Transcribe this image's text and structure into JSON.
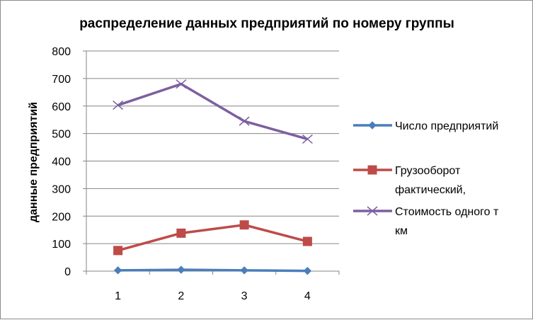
{
  "chart_data": {
    "type": "line",
    "title": "распределение данных предприятий по номеру группы",
    "xlabel": "",
    "ylabel": "данные предприятий",
    "categories": [
      "1",
      "2",
      "3",
      "4"
    ],
    "ylim": [
      0,
      800
    ],
    "yticks": [
      "0",
      "100",
      "200",
      "300",
      "400",
      "500",
      "600",
      "700",
      "800"
    ],
    "grid": true,
    "legend_position": "right",
    "series": [
      {
        "name": "Число предприятий",
        "legend_lines": [
          "Число предприятий"
        ],
        "values": [
          3,
          5,
          3,
          1
        ],
        "color": "#4A7EBB",
        "marker": "diamond"
      },
      {
        "name": "Грузооборот фактический,",
        "legend_lines": [
          "Грузооборот",
          "фактический,"
        ],
        "values": [
          75,
          138,
          168,
          108
        ],
        "color": "#BE4B48",
        "marker": "square"
      },
      {
        "name": "Стоимость одного т км",
        "legend_lines": [
          "Стоимость одного т",
          "км"
        ],
        "values": [
          603,
          680,
          545,
          480
        ],
        "color": "#7D5FA0",
        "marker": "x"
      }
    ]
  }
}
